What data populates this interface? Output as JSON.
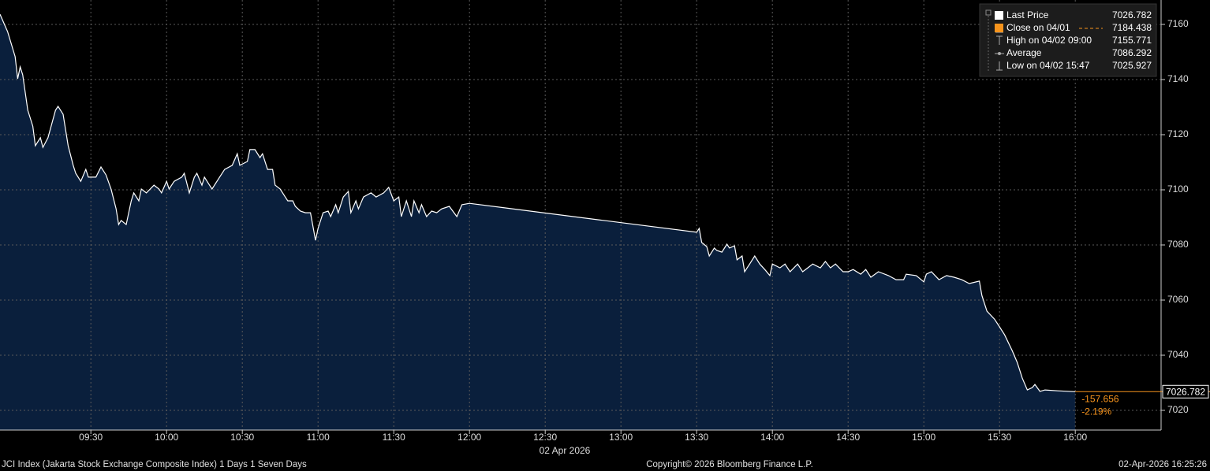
{
  "chart_data": {
    "type": "area",
    "x": [
      534,
      537,
      540,
      541,
      542,
      543,
      545,
      547,
      548,
      550,
      551,
      553,
      556,
      557,
      559,
      561,
      563,
      564,
      566,
      568,
      569,
      572,
      574,
      576,
      578,
      580,
      581,
      582,
      584,
      586,
      587,
      589,
      590,
      592,
      595,
      597,
      598,
      600,
      601,
      603,
      606,
      607,
      609,
      611,
      612,
      614,
      615,
      617,
      618,
      621,
      623,
      626,
      628,
      629,
      632,
      633,
      635,
      637,
      638,
      640,
      642,
      643,
      645,
      647,
      648,
      650,
      651,
      653,
      655,
      657,
      659,
      660,
      662,
      664,
      665,
      667,
      668,
      670,
      672,
      673,
      675,
      676,
      678,
      681,
      683,
      686,
      688,
      690,
      692,
      693,
      695,
      697,
      698,
      700,
      701,
      703,
      705,
      707,
      709,
      712,
      715,
      717,
      720,
      810,
      811,
      812,
      814,
      815,
      817,
      818,
      820,
      822,
      823,
      825,
      826,
      828,
      829,
      831,
      833,
      835,
      837,
      839,
      840,
      843,
      845,
      847,
      850,
      852,
      854,
      856,
      859,
      861,
      863,
      865,
      868,
      870,
      872,
      875,
      877,
      879,
      882,
      886,
      889,
      892,
      893,
      897,
      900,
      901,
      903,
      906,
      909,
      912,
      915,
      918,
      922,
      923,
      925,
      928,
      930,
      932,
      935,
      937,
      939,
      941,
      943,
      944,
      946,
      948,
      953,
      960
    ],
    "values": [
      7163.7,
      7157.4,
      7148.3,
      7140.3,
      7144.6,
      7141.7,
      7128.9,
      7123.1,
      7116.0,
      7118.9,
      7115.4,
      7118.9,
      7128.9,
      7130.3,
      7127.4,
      7116.0,
      7108.9,
      7106.0,
      7103.1,
      7107.4,
      7104.6,
      7104.6,
      7108.3,
      7105.4,
      7100.3,
      7093.1,
      7087.4,
      7088.9,
      7087.4,
      7096.0,
      7098.9,
      7096.0,
      7100.3,
      7098.9,
      7101.7,
      7100.3,
      7098.9,
      7103.1,
      7100.3,
      7103.1,
      7104.6,
      7106.0,
      7098.9,
      7104.6,
      7106.0,
      7101.7,
      7104.6,
      7101.7,
      7100.3,
      7104.6,
      7107.4,
      7108.9,
      7113.1,
      7108.9,
      7110.3,
      7114.6,
      7114.6,
      7111.7,
      7113.1,
      7107.4,
      7107.4,
      7101.7,
      7100.3,
      7097.4,
      7096.0,
      7096.0,
      7094.0,
      7092.3,
      7091.7,
      7091.7,
      7081.7,
      7086.0,
      7091.7,
      7092.3,
      7090.3,
      7094.6,
      7091.7,
      7097.4,
      7099.4,
      7091.7,
      7096.0,
      7093.1,
      7097.4,
      7098.9,
      7097.4,
      7098.9,
      7100.9,
      7096.0,
      7097.4,
      7090.3,
      7096.0,
      7090.3,
      7096.0,
      7091.7,
      7094.6,
      7090.3,
      7092.3,
      7091.7,
      7093.1,
      7094.0,
      7090.3,
      7094.6,
      7095.1,
      7084.6,
      7086.0,
      7080.9,
      7079.4,
      7076.0,
      7078.9,
      7078.0,
      7077.4,
      7080.3,
      7078.9,
      7079.7,
      7074.6,
      7076.0,
      7070.3,
      7073.1,
      7076.0,
      7073.1,
      7071.1,
      7068.9,
      7073.1,
      7071.7,
      7073.1,
      7070.3,
      7073.1,
      7070.3,
      7071.7,
      7073.1,
      7071.7,
      7074.0,
      7071.7,
      7073.1,
      7070.3,
      7070.3,
      7071.1,
      7069.4,
      7071.1,
      7068.3,
      7070.3,
      7068.9,
      7067.4,
      7067.4,
      7069.4,
      7068.9,
      7066.6,
      7069.4,
      7070.3,
      7067.4,
      7068.9,
      7068.3,
      7067.4,
      7066.0,
      7066.9,
      7061.7,
      7056.0,
      7053.1,
      7050.3,
      7047.4,
      7041.7,
      7037.4,
      7031.7,
      7027.4,
      7028.3,
      7029.4,
      7026.9,
      7027.4,
      7027.1,
      7026.782
    ],
    "color": "#ffffff",
    "fill": "#0a1f3c",
    "ref_color": "#f7941d",
    "xlim": [
      534,
      994
    ],
    "ylim": [
      7012.86,
      7168.86
    ],
    "xticks": [
      {
        "value": 570,
        "label": "09:30"
      },
      {
        "value": 600,
        "label": "10:00"
      },
      {
        "value": 630,
        "label": "10:30"
      },
      {
        "value": 660,
        "label": "11:00"
      },
      {
        "value": 690,
        "label": "11:30"
      },
      {
        "value": 720,
        "label": "12:00"
      },
      {
        "value": 750,
        "label": "12:30"
      },
      {
        "value": 780,
        "label": "13:00"
      },
      {
        "value": 810,
        "label": "13:30"
      },
      {
        "value": 840,
        "label": "14:00"
      },
      {
        "value": 870,
        "label": "14:30"
      },
      {
        "value": 900,
        "label": "15:00"
      },
      {
        "value": 930,
        "label": "15:30"
      },
      {
        "value": 960,
        "label": "16:00"
      }
    ],
    "yticks": [
      7020,
      7040,
      7060,
      7080,
      7100,
      7120,
      7140,
      7160
    ],
    "date_label": "02 Apr 2026",
    "grid": true,
    "legend": {
      "position": "top-right",
      "items": [
        {
          "name": "Last Price",
          "value": 7026.782,
          "color": "#ffffff"
        },
        {
          "name": "Close on 04/01",
          "value": 7184.438,
          "color": "#f7941d"
        },
        {
          "name": "High on 04/02 09:00",
          "value": 7155.771,
          "color": "#aaaaaa"
        },
        {
          "name": "Average",
          "value": 7086.292,
          "color": "#aaaaaa"
        },
        {
          "name": "Low on 04/02 15:47",
          "value": 7025.927,
          "color": "#aaaaaa"
        }
      ]
    },
    "change": -157.656,
    "change_pct": "-2.19%"
  },
  "footer": {
    "left": "JCI Index (Jakarta Stock Exchange Composite Index) 1 Days 1 Seven Days",
    "center": "Copyright© 2026 Bloomberg Finance L.P.",
    "right": "02-Apr-2026 16:25:26"
  }
}
